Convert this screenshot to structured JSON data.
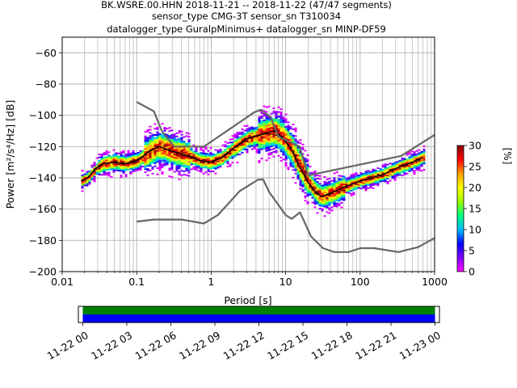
{
  "chart_data": [
    {
      "type": "heatmap",
      "title_lines": [
        "BK.WSRE.00.HHN   2018-11-21 -- 2018-11-22  (47/47 segments)",
        "sensor_type CMG-3T sensor_sn T310034",
        "datalogger_type GuralpMinimus+ datalogger_sn MINP-DF59"
      ],
      "xlabel": "Period [s]",
      "ylabel": "Power [m²/s⁴/Hz] [dB]",
      "xscale": "log",
      "xlim": [
        0.01,
        1000
      ],
      "ylim": [
        -200,
        -50
      ],
      "xticks": [
        0.01,
        0.1,
        1,
        10,
        100,
        1000
      ],
      "xtick_labels": [
        "0.01",
        "0.1",
        "1",
        "10",
        "100",
        "1000"
      ],
      "yticks": [
        -200,
        -180,
        -160,
        -140,
        -120,
        -100,
        -80,
        -60
      ],
      "ytick_labels": [
        "−200",
        "−180",
        "−160",
        "−140",
        "−120",
        "−100",
        "−80",
        "−60"
      ],
      "grid": true,
      "colorbar": {
        "label": "[%]",
        "min": 0,
        "max": 30,
        "ticks": [
          0,
          5,
          10,
          15,
          20,
          25,
          30
        ],
        "tick_labels": [
          "0",
          "5",
          "10",
          "15",
          "20",
          "25",
          "30"
        ],
        "colors": [
          "#ff00ff",
          "#7f00ff",
          "#0000ff",
          "#00bfff",
          "#00ff7f",
          "#9fff00",
          "#ffff00",
          "#ff9f00",
          "#ff0000",
          "#8b0000"
        ]
      },
      "series": [
        {
          "kind": "mode",
          "color": "#000000",
          "x": [
            0.018,
            0.022,
            0.028,
            0.035,
            0.05,
            0.07,
            0.1,
            0.15,
            0.2,
            0.3,
            0.5,
            0.7,
            1.0,
            1.4,
            2.0,
            3.0,
            5.0,
            7.0,
            9.0,
            12,
            15,
            20,
            25,
            30,
            40,
            60,
            100,
            200,
            300,
            500,
            700
          ],
          "y": [
            -142,
            -140,
            -134,
            -131,
            -130,
            -131,
            -129,
            -123,
            -120,
            -123,
            -126,
            -129,
            -130,
            -127,
            -121,
            -115,
            -112,
            -110,
            -114,
            -122,
            -132,
            -143,
            -149,
            -152,
            -150,
            -146,
            -142,
            -138,
            -134,
            -130,
            -127
          ]
        },
        {
          "kind": "NHNM",
          "color": "#666666",
          "x": [
            0.1,
            0.17,
            0.22,
            0.32,
            0.8,
            3.8,
            4.6,
            6.3,
            7.9,
            15.4,
            20,
            354.8,
            1000
          ],
          "y": [
            -91.5,
            -97.4,
            -110.5,
            -120.0,
            -120.0,
            -98.0,
            -96.5,
            -101.0,
            -113.5,
            -120.0,
            -138.5,
            -126.0,
            -112.5
          ]
        },
        {
          "kind": "NLNM",
          "color": "#666666",
          "x": [
            0.1,
            0.17,
            0.4,
            0.8,
            1.24,
            2.4,
            4.3,
            5.0,
            6.0,
            10.0,
            12.0,
            15.6,
            21.9,
            31.6,
            45.0,
            70.0,
            101.0,
            154.0,
            328.0,
            600.0,
            1000.0
          ],
          "y": [
            -168.0,
            -166.7,
            -166.7,
            -169.2,
            -163.7,
            -148.6,
            -141.1,
            -141.1,
            -149.0,
            -163.8,
            -166.2,
            -162.1,
            -177.5,
            -185.0,
            -187.5,
            -187.5,
            -185.0,
            -185.0,
            -187.5,
            -184.4,
            -178.5
          ]
        }
      ],
      "heatmap_cells_note": ""
    },
    {
      "type": "bar",
      "orientation": "timeline",
      "tick_labels": [
        "11-22 00",
        "11-22 03",
        "11-22 06",
        "11-22 09",
        "11-22 12",
        "11-22 15",
        "11-22 18",
        "11-22 21",
        "11-23 00"
      ],
      "xlim_hours": [
        -0.3,
        24.3
      ],
      "series": [
        {
          "name": "",
          "color": "#008000",
          "start_hour": 0,
          "end_hour": 24
        },
        {
          "name": "",
          "color": "#0000ff",
          "start_hour": 0,
          "end_hour": 24
        }
      ]
    }
  ]
}
